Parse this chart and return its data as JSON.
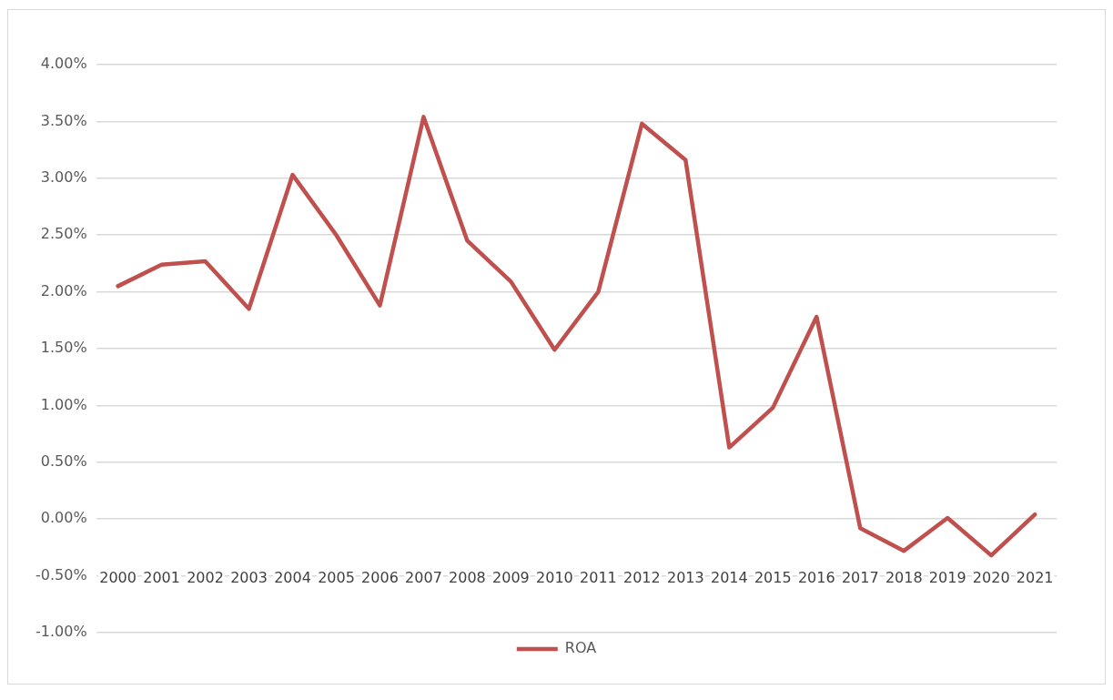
{
  "chart_data": {
    "type": "line",
    "categories": [
      "2000",
      "2001",
      "2002",
      "2003",
      "2004",
      "2005",
      "2006",
      "2007",
      "2008",
      "2009",
      "2010",
      "2011",
      "2012",
      "2013",
      "2014",
      "2015",
      "2016",
      "2017",
      "2018",
      "2019",
      "2020",
      "2021"
    ],
    "series": [
      {
        "name": "ROA",
        "color": "#c0504d",
        "values": [
          2.05,
          2.24,
          2.27,
          1.85,
          3.03,
          2.5,
          1.88,
          3.54,
          2.45,
          2.09,
          1.49,
          2.0,
          3.48,
          3.16,
          0.63,
          0.98,
          1.78,
          -0.08,
          -0.28,
          0.01,
          -0.32,
          0.04
        ]
      }
    ],
    "ylim": [
      -1,
      4
    ],
    "yticks": [
      {
        "value": -1,
        "label": "-1.00%"
      },
      {
        "value": -0.5,
        "label": "-0.50%"
      },
      {
        "value": 0,
        "label": "0.00%"
      },
      {
        "value": 0.5,
        "label": "0.50%"
      },
      {
        "value": 1,
        "label": "1.00%"
      },
      {
        "value": 1.5,
        "label": "1.50%"
      },
      {
        "value": 2,
        "label": "2.00%"
      },
      {
        "value": 2.5,
        "label": "2.50%"
      },
      {
        "value": 3,
        "label": "3.00%"
      },
      {
        "value": 3.5,
        "label": "3.50%"
      },
      {
        "value": 4,
        "label": "4.00%"
      }
    ],
    "grid": "y",
    "legend": "bottom",
    "marker": "none",
    "line_style": "solid"
  }
}
